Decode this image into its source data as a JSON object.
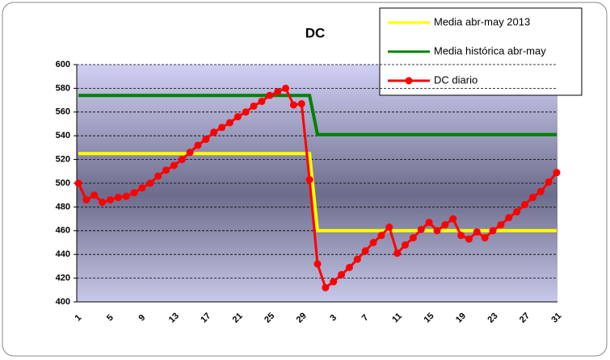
{
  "chart_data": {
    "type": "line",
    "title": "DC",
    "categories": [
      "1",
      null,
      null,
      null,
      "5",
      null,
      null,
      null,
      "9",
      null,
      null,
      null,
      "13",
      null,
      null,
      null,
      "17",
      null,
      null,
      null,
      "21",
      null,
      null,
      null,
      "25",
      null,
      null,
      null,
      "29",
      null,
      null,
      null,
      "3",
      null,
      null,
      null,
      "7",
      null,
      null,
      null,
      "11",
      null,
      null,
      null,
      "15",
      null,
      null,
      null,
      "19",
      null,
      null,
      null,
      "23",
      null,
      null,
      null,
      "27",
      null,
      null,
      null,
      "31"
    ],
    "series": [
      {
        "name": "Media abr-may 2013",
        "color": "#ffff00",
        "values": [
          525,
          525,
          525,
          525,
          525,
          525,
          525,
          525,
          525,
          525,
          525,
          525,
          525,
          525,
          525,
          525,
          525,
          525,
          525,
          525,
          525,
          525,
          525,
          525,
          525,
          525,
          525,
          525,
          525,
          525,
          460,
          460,
          460,
          460,
          460,
          460,
          460,
          460,
          460,
          460,
          460,
          460,
          460,
          460,
          460,
          460,
          460,
          460,
          460,
          460,
          460,
          460,
          460,
          460,
          460,
          460,
          460,
          460,
          460,
          460,
          460
        ]
      },
      {
        "name": "Media histórica abr-may",
        "color": "#008000",
        "values": [
          574,
          574,
          574,
          574,
          574,
          574,
          574,
          574,
          574,
          574,
          574,
          574,
          574,
          574,
          574,
          574,
          574,
          574,
          574,
          574,
          574,
          574,
          574,
          574,
          574,
          574,
          574,
          574,
          574,
          574,
          541,
          541,
          541,
          541,
          541,
          541,
          541,
          541,
          541,
          541,
          541,
          541,
          541,
          541,
          541,
          541,
          541,
          541,
          541,
          541,
          541,
          541,
          541,
          541,
          541,
          541,
          541,
          541,
          541,
          541,
          541
        ]
      },
      {
        "name": "DC diario",
        "color": "#ff0000",
        "markers": true,
        "values": [
          500,
          486,
          490,
          484,
          486,
          488,
          489,
          492,
          496,
          500,
          506,
          511,
          515,
          520,
          526,
          532,
          537,
          543,
          547,
          551,
          556,
          560,
          565,
          569,
          574,
          577,
          580,
          566,
          567,
          503,
          432,
          412,
          417,
          423,
          429,
          436,
          443,
          450,
          456,
          463,
          441,
          448,
          454,
          461,
          467,
          460,
          465,
          470,
          456,
          453,
          459,
          454,
          460,
          465,
          471,
          476,
          482,
          488,
          493,
          501,
          509
        ]
      }
    ],
    "ylim": [
      400,
      600
    ],
    "yticks": [
      400,
      420,
      440,
      460,
      480,
      500,
      520,
      540,
      560,
      580,
      600
    ],
    "grid": true,
    "legend": "top-right"
  }
}
